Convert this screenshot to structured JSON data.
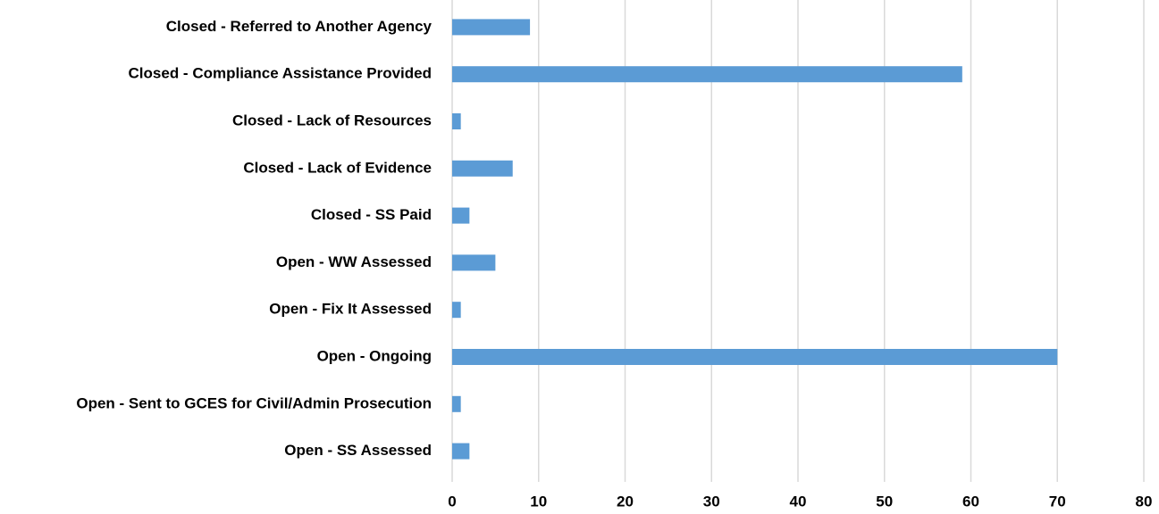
{
  "chart_data": {
    "type": "bar",
    "orientation": "horizontal",
    "categories": [
      "Closed - Referred to Another Agency",
      "Closed - Compliance Assistance Provided",
      "Closed - Lack of Resources",
      "Closed - Lack of Evidence",
      "Closed - SS Paid",
      "Open - WW Assessed",
      "Open - Fix It Assessed",
      "Open - Ongoing",
      "Open - Sent to GCES for Civil/Admin Prosecution",
      "Open - SS Assessed"
    ],
    "values": [
      9,
      59,
      1,
      7,
      2,
      5,
      1,
      70,
      1,
      2
    ],
    "color": "#5b9bd5",
    "xlim": [
      0,
      80
    ],
    "xticks": [
      0,
      10,
      20,
      30,
      40,
      50,
      60,
      70,
      80
    ],
    "grid": true
  }
}
